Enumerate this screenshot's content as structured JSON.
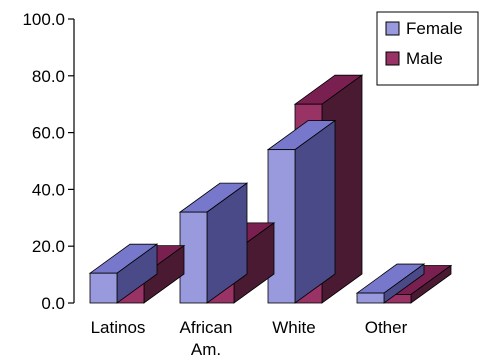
{
  "chart_data": {
    "type": "bar",
    "categories": [
      [
        "Latinos"
      ],
      [
        "African",
        "Am."
      ],
      [
        "White"
      ],
      [
        "Other"
      ]
    ],
    "series": [
      {
        "name": "Female",
        "values": [
          10.5,
          32.0,
          54.0,
          3.5
        ],
        "colors": {
          "front": "#9999dd",
          "top": "#7777cc",
          "side": "#4a4a88"
        }
      },
      {
        "name": "Male",
        "values": [
          10.0,
          18.0,
          70.0,
          3.0
        ],
        "colors": {
          "front": "#993366",
          "top": "#7a2050",
          "side": "#4a1a32"
        }
      }
    ],
    "ylim": [
      0,
      100
    ],
    "yticks": [
      "0.0",
      "20.0",
      "40.0",
      "60.0",
      "80.0",
      "100.0"
    ],
    "legend": {
      "position": "top-right"
    },
    "grid": false
  }
}
